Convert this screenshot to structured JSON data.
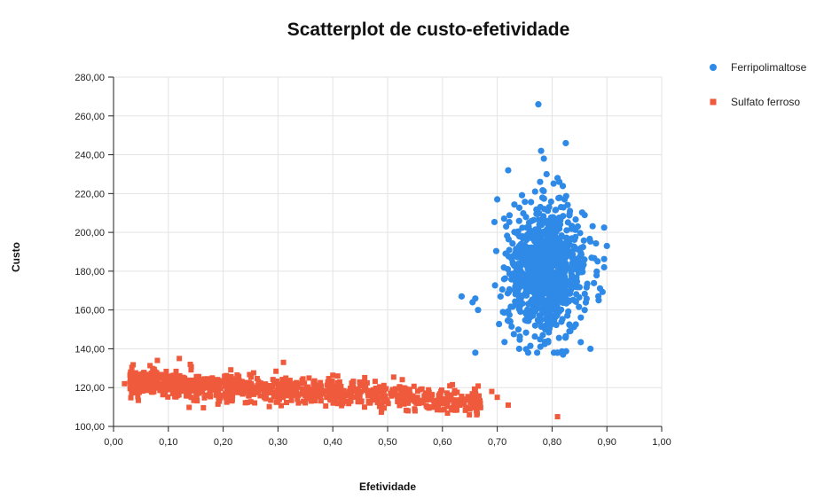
{
  "chart_data": {
    "type": "scatter",
    "title": "Scatterplot de custo-efetividade",
    "xlabel": "Efetividade",
    "ylabel": "Custo",
    "xlim": [
      0,
      1
    ],
    "ylim": [
      100,
      280
    ],
    "x_ticks": [
      "0,00",
      "0,10",
      "0,20",
      "0,30",
      "0,40",
      "0,50",
      "0,60",
      "0,70",
      "0,80",
      "0,90",
      "1,00"
    ],
    "y_ticks": [
      "100,00",
      "120,00",
      "140,00",
      "160,00",
      "180,00",
      "200,00",
      "220,00",
      "240,00",
      "260,00",
      "280,00"
    ],
    "grid": true,
    "legend_position": "top-right",
    "series": [
      {
        "name": "Ferripolimaltose",
        "marker": "circle",
        "color": "#2e8ae6",
        "summary": {
          "x_mean": 0.79,
          "x_sd": 0.035,
          "y_mean": 180,
          "y_sd": 16,
          "n": 1000
        },
        "notable_points": [
          [
            0.775,
            266
          ],
          [
            0.825,
            246
          ],
          [
            0.78,
            242
          ],
          [
            0.785,
            238
          ],
          [
            0.72,
            232
          ],
          [
            0.79,
            230
          ],
          [
            0.81,
            228
          ],
          [
            0.7,
            217
          ],
          [
            0.635,
            167
          ],
          [
            0.655,
            164
          ],
          [
            0.665,
            160
          ],
          [
            0.74,
            140
          ],
          [
            0.82,
            137
          ],
          [
            0.87,
            140
          ],
          [
            0.9,
            193
          ],
          [
            0.895,
            182
          ],
          [
            0.885,
            165
          ]
        ]
      },
      {
        "name": "Sulfato ferroso",
        "marker": "square",
        "color": "#f05a3c",
        "summary": {
          "x_start": 0.03,
          "x_end": 0.67,
          "y_at_start": 123,
          "y_at_end": 113,
          "y_sd": 3.5,
          "n": 1000
        },
        "notable_points": [
          [
            0.02,
            122
          ],
          [
            0.04,
            118
          ],
          [
            0.08,
            134
          ],
          [
            0.12,
            135
          ],
          [
            0.14,
            132
          ],
          [
            0.31,
            133
          ],
          [
            0.58,
            116
          ],
          [
            0.66,
            119
          ],
          [
            0.69,
            118
          ],
          [
            0.7,
            115
          ],
          [
            0.72,
            111
          ],
          [
            0.81,
            105
          ],
          [
            0.65,
            109
          ],
          [
            0.55,
            108
          ]
        ]
      }
    ]
  }
}
